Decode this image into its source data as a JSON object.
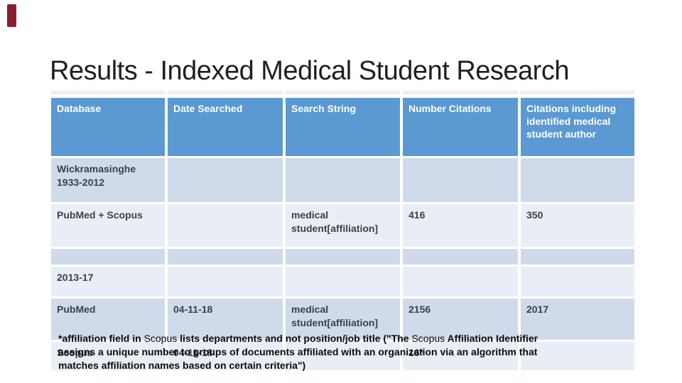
{
  "slide": {
    "title": "Results - Indexed Medical Student Research"
  },
  "table": {
    "columns": [
      "Database",
      "Date Searched",
      "Search String",
      "Number Citations",
      "Citations including identified medical student author"
    ],
    "rows": [
      [
        "Wickramasinghe 1933-2012",
        "",
        "",
        "",
        ""
      ],
      [
        "PubMed + Scopus",
        "",
        "medical student[affiliation]",
        "416",
        "350"
      ],
      [
        "",
        "",
        "",
        "",
        ""
      ],
      [
        "2013-17",
        "",
        "",
        "",
        ""
      ],
      [
        "PubMed",
        "04-11-18",
        "medical student[affiliation]",
        "2156",
        "2017"
      ],
      [
        "Scopus",
        "04-11-18",
        "",
        "16*",
        ""
      ]
    ]
  },
  "footnote": {
    "line1_parts": [
      {
        "text": "*affiliation field in "
      },
      {
        "text": "Scopus"
      },
      {
        "text": " lists departments and not position/job title (\"The "
      },
      {
        "text": "Scopus"
      },
      {
        "text": " Affiliation Identifier"
      }
    ],
    "line2": "assigns a unique number to groups of documents affiliated with an organization via an algorithm that",
    "line3": "matches affiliation names based on certain criteria\")"
  },
  "colors": {
    "header_blue": "#5b99d3",
    "band_dark": "#cfdaea",
    "band_light": "#e9eef6",
    "accent_red": "#8c1d2f",
    "strip_gray": "#f1ecef",
    "header_text": "#ffffff",
    "body_text": "#3d4147"
  }
}
